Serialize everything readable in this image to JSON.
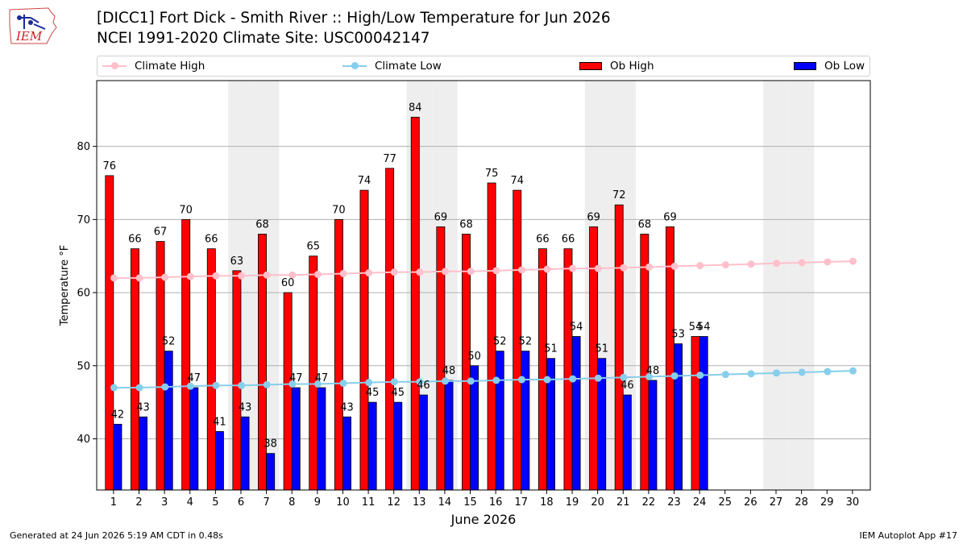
{
  "logo": {
    "text": "IEM",
    "icon": "iem-iowa-logo-icon"
  },
  "title_line1": "[DICC1] Fort Dick - Smith River :: High/Low Temperature for Jun 2026",
  "title_line2": "NCEI 1991-2020 Climate Site: USC00042147",
  "legend": {
    "climate_high": "Climate High",
    "climate_low": "Climate Low",
    "ob_high": "Ob High",
    "ob_low": "Ob Low"
  },
  "footer_left": "Generated at 24 Jun 2026 5:19 AM CDT in 0.48s",
  "footer_right": "IEM Autoplot App #17",
  "colors": {
    "climate_high": "#ffc0cb",
    "climate_low": "#87ceeb",
    "ob_high": "#ff0000",
    "ob_low": "#0000ff",
    "weekend_shade": "#eeeeee",
    "grid": "#b0b0b0"
  },
  "chart_data": {
    "type": "bar",
    "xlabel": "June 2026",
    "ylabel": "Temperature °F",
    "ylim": [
      33,
      89
    ],
    "yticks": [
      40,
      50,
      60,
      70,
      80
    ],
    "grid": "horizontal",
    "legend_position": "top",
    "weekend_shaded_days": [
      6,
      7,
      13,
      14,
      20,
      21,
      27,
      28
    ],
    "days": [
      1,
      2,
      3,
      4,
      5,
      6,
      7,
      8,
      9,
      10,
      11,
      12,
      13,
      14,
      15,
      16,
      17,
      18,
      19,
      20,
      21,
      22,
      23,
      24,
      25,
      26,
      27,
      28,
      29,
      30
    ],
    "series": [
      {
        "name": "Ob High",
        "kind": "bar",
        "values": [
          76,
          66,
          67,
          70,
          66,
          63,
          68,
          60,
          65,
          70,
          74,
          77,
          84,
          69,
          68,
          75,
          74,
          66,
          66,
          69,
          72,
          68,
          69,
          54
        ]
      },
      {
        "name": "Ob Low",
        "kind": "bar",
        "values": [
          42,
          43,
          52,
          47,
          41,
          43,
          38,
          47,
          47,
          43,
          45,
          45,
          46,
          48,
          50,
          52,
          52,
          51,
          54,
          51,
          46,
          48,
          53,
          54
        ]
      },
      {
        "name": "Climate High",
        "kind": "line",
        "values": [
          62.0,
          62.0,
          62.1,
          62.2,
          62.3,
          62.3,
          62.4,
          62.4,
          62.5,
          62.6,
          62.7,
          62.8,
          62.8,
          62.9,
          62.9,
          63.0,
          63.1,
          63.2,
          63.3,
          63.3,
          63.4,
          63.5,
          63.6,
          63.7,
          63.8,
          63.9,
          64.0,
          64.1,
          64.2,
          64.3
        ]
      },
      {
        "name": "Climate Low",
        "kind": "line",
        "values": [
          47.0,
          47.0,
          47.1,
          47.2,
          47.3,
          47.3,
          47.4,
          47.5,
          47.5,
          47.6,
          47.7,
          47.8,
          47.8,
          47.9,
          47.9,
          48.0,
          48.1,
          48.1,
          48.2,
          48.3,
          48.4,
          48.5,
          48.6,
          48.7,
          48.8,
          48.9,
          49.0,
          49.1,
          49.2,
          49.3
        ]
      }
    ]
  }
}
